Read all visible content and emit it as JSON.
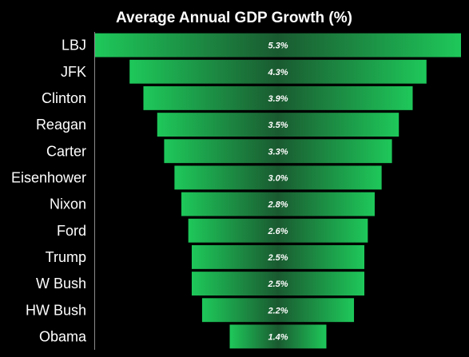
{
  "chart_data": {
    "type": "bar",
    "orientation": "horizontal-centered",
    "title": "Average Annual GDP Growth (%)",
    "xlabel": "",
    "ylabel": "",
    "categories": [
      "LBJ",
      "JFK",
      "Clinton",
      "Reagan",
      "Carter",
      "Eisenhower",
      "Nixon",
      "Ford",
      "Trump",
      "W Bush",
      "HW Bush",
      "Obama"
    ],
    "values": [
      5.3,
      4.3,
      3.9,
      3.5,
      3.3,
      3.0,
      2.8,
      2.6,
      2.5,
      2.5,
      2.2,
      1.4
    ],
    "value_labels": [
      "5.3%",
      "4.3%",
      "3.9%",
      "3.5%",
      "3.3%",
      "3.0%",
      "2.8%",
      "2.6%",
      "2.5%",
      "2.5%",
      "2.2%",
      "1.4%"
    ],
    "xlim": [
      0,
      5.3
    ],
    "grid": false,
    "legend": "none",
    "colors": {
      "background": "#000000",
      "bar_edge": "#1ec85a",
      "bar_center": "#1a5a30",
      "text": "#ffffff",
      "axis": "#8c8c8c"
    }
  }
}
